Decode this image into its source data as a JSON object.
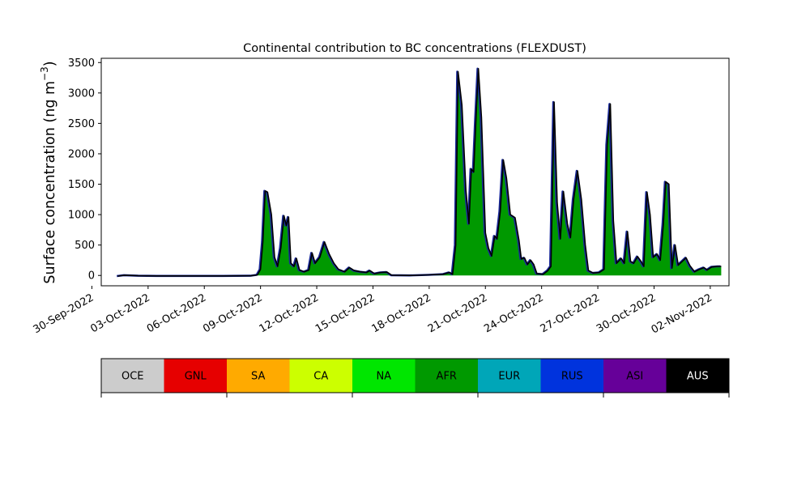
{
  "chart_data": {
    "type": "area",
    "title": "Continental contribution to BC concentrations (FLEXDUST)",
    "ylabel": "Surface concentration (ng m",
    "ylabel_sup": "−3",
    "ylabel_close": ")",
    "xlabel": "",
    "ylim": [
      -170,
      3570
    ],
    "xlim": [
      "2022-09-30T12:00",
      "2022-11-03T00:00"
    ],
    "yticks": [
      0,
      500,
      1000,
      1500,
      2000,
      2500,
      3000,
      3500
    ],
    "xticks": [
      "30-Sep-2022",
      "03-Oct-2022",
      "06-Oct-2022",
      "09-Oct-2022",
      "12-Oct-2022",
      "15-Oct-2022",
      "18-Oct-2022",
      "21-Oct-2022",
      "24-Oct-2022",
      "27-Oct-2022",
      "30-Oct-2022",
      "02-Nov-2022"
    ],
    "grid": false,
    "dominant_series": "AFR",
    "total_series_color": "#000000",
    "total": [
      [
        "2022-10-01T09:00",
        -10
      ],
      [
        "2022-10-01T18:00",
        5
      ],
      [
        "2022-10-02T12:00",
        -5
      ],
      [
        "2022-10-03T12:00",
        -8
      ],
      [
        "2022-10-05T00:00",
        -8
      ],
      [
        "2022-10-07T00:00",
        -8
      ],
      [
        "2022-10-08T12:00",
        -5
      ],
      [
        "2022-10-08T20:00",
        10
      ],
      [
        "2022-10-09T00:00",
        100
      ],
      [
        "2022-10-09T03:00",
        550
      ],
      [
        "2022-10-09T06:00",
        1390
      ],
      [
        "2022-10-09T09:00",
        1370
      ],
      [
        "2022-10-09T14:00",
        1000
      ],
      [
        "2022-10-09T18:00",
        300
      ],
      [
        "2022-10-09T22:00",
        150
      ],
      [
        "2022-10-10T02:00",
        450
      ],
      [
        "2022-10-10T06:00",
        980
      ],
      [
        "2022-10-10T09:00",
        820
      ],
      [
        "2022-10-10T12:00",
        960
      ],
      [
        "2022-10-10T15:00",
        200
      ],
      [
        "2022-10-10T19:00",
        150
      ],
      [
        "2022-10-10T22:00",
        280
      ],
      [
        "2022-10-11T02:00",
        90
      ],
      [
        "2022-10-11T08:00",
        60
      ],
      [
        "2022-10-11T14:00",
        90
      ],
      [
        "2022-10-11T18:00",
        370
      ],
      [
        "2022-10-11T22:00",
        200
      ],
      [
        "2022-10-12T04:00",
        300
      ],
      [
        "2022-10-12T10:00",
        550
      ],
      [
        "2022-10-12T16:00",
        350
      ],
      [
        "2022-10-12T22:00",
        200
      ],
      [
        "2022-10-13T04:00",
        100
      ],
      [
        "2022-10-13T12:00",
        60
      ],
      [
        "2022-10-13T18:00",
        130
      ],
      [
        "2022-10-14T00:00",
        80
      ],
      [
        "2022-10-14T08:00",
        60
      ],
      [
        "2022-10-14T16:00",
        50
      ],
      [
        "2022-10-14T20:00",
        80
      ],
      [
        "2022-10-15T02:00",
        30
      ],
      [
        "2022-10-15T10:00",
        50
      ],
      [
        "2022-10-15T18:00",
        55
      ],
      [
        "2022-10-16T00:00",
        5
      ],
      [
        "2022-10-17T00:00",
        0
      ],
      [
        "2022-10-18T00:00",
        10
      ],
      [
        "2022-10-18T18:00",
        20
      ],
      [
        "2022-10-19T02:00",
        50
      ],
      [
        "2022-10-19T06:00",
        20
      ],
      [
        "2022-10-19T10:00",
        500
      ],
      [
        "2022-10-19T13:00",
        3350
      ],
      [
        "2022-10-19T18:00",
        2800
      ],
      [
        "2022-10-19T23:00",
        1400
      ],
      [
        "2022-10-20T03:00",
        850
      ],
      [
        "2022-10-20T06:00",
        1750
      ],
      [
        "2022-10-20T09:00",
        1700
      ],
      [
        "2022-10-20T12:00",
        2600
      ],
      [
        "2022-10-20T15:00",
        3400
      ],
      [
        "2022-10-20T19:00",
        2600
      ],
      [
        "2022-10-21T00:00",
        700
      ],
      [
        "2022-10-21T04:00",
        450
      ],
      [
        "2022-10-21T08:00",
        320
      ],
      [
        "2022-10-21T12:00",
        650
      ],
      [
        "2022-10-21T15:00",
        600
      ],
      [
        "2022-10-21T19:00",
        1050
      ],
      [
        "2022-10-21T23:00",
        1900
      ],
      [
        "2022-10-22T03:00",
        1600
      ],
      [
        "2022-10-22T08:00",
        1000
      ],
      [
        "2022-10-22T14:00",
        950
      ],
      [
        "2022-10-22T19:00",
        580
      ],
      [
        "2022-10-22T22:00",
        270
      ],
      [
        "2022-10-23T02:00",
        290
      ],
      [
        "2022-10-23T06:00",
        180
      ],
      [
        "2022-10-23T10:00",
        250
      ],
      [
        "2022-10-23T14:00",
        180
      ],
      [
        "2022-10-23T18:00",
        30
      ],
      [
        "2022-10-24T02:00",
        20
      ],
      [
        "2022-10-24T08:00",
        80
      ],
      [
        "2022-10-24T12:00",
        150
      ],
      [
        "2022-10-24T16:00",
        2850
      ],
      [
        "2022-10-24T20:00",
        1200
      ],
      [
        "2022-10-25T00:00",
        600
      ],
      [
        "2022-10-25T04:00",
        1380
      ],
      [
        "2022-10-25T09:00",
        850
      ],
      [
        "2022-10-25T13:00",
        620
      ],
      [
        "2022-10-25T17:00",
        1250
      ],
      [
        "2022-10-25T22:00",
        1720
      ],
      [
        "2022-10-26T03:00",
        1250
      ],
      [
        "2022-10-26T08:00",
        500
      ],
      [
        "2022-10-26T12:00",
        80
      ],
      [
        "2022-10-26T18:00",
        40
      ],
      [
        "2022-10-27T02:00",
        50
      ],
      [
        "2022-10-27T08:00",
        100
      ],
      [
        "2022-10-27T12:00",
        2150
      ],
      [
        "2022-10-27T16:00",
        2820
      ],
      [
        "2022-10-27T20:00",
        900
      ],
      [
        "2022-10-28T00:00",
        200
      ],
      [
        "2022-10-28T06:00",
        280
      ],
      [
        "2022-10-28T10:00",
        200
      ],
      [
        "2022-10-28T14:00",
        720
      ],
      [
        "2022-10-28T18:00",
        230
      ],
      [
        "2022-10-28T22:00",
        200
      ],
      [
        "2022-10-29T03:00",
        310
      ],
      [
        "2022-10-29T08:00",
        220
      ],
      [
        "2022-10-29T11:00",
        150
      ],
      [
        "2022-10-29T15:00",
        1370
      ],
      [
        "2022-10-29T19:00",
        1000
      ],
      [
        "2022-10-29T23:00",
        300
      ],
      [
        "2022-10-30T04:00",
        350
      ],
      [
        "2022-10-30T08:00",
        250
      ],
      [
        "2022-10-30T12:00",
        850
      ],
      [
        "2022-10-30T15:00",
        1540
      ],
      [
        "2022-10-30T19:00",
        1500
      ],
      [
        "2022-10-30T23:00",
        120
      ],
      [
        "2022-10-31T03:00",
        500
      ],
      [
        "2022-10-31T07:00",
        170
      ],
      [
        "2022-10-31T12:00",
        230
      ],
      [
        "2022-10-31T17:00",
        290
      ],
      [
        "2022-10-31T22:00",
        160
      ],
      [
        "2022-11-01T04:00",
        60
      ],
      [
        "2022-11-01T10:00",
        100
      ],
      [
        "2022-11-01T16:00",
        130
      ],
      [
        "2022-11-01T20:00",
        90
      ],
      [
        "2022-11-02T02:00",
        140
      ],
      [
        "2022-11-02T10:00",
        150
      ],
      [
        "2022-11-02T14:00",
        150
      ]
    ]
  },
  "legend": {
    "items": [
      {
        "label": "OCE",
        "color": "#cccccc"
      },
      {
        "label": "GNL",
        "color": "#e60000"
      },
      {
        "label": "SA",
        "color": "#ffaa00"
      },
      {
        "label": "CA",
        "color": "#ccff00"
      },
      {
        "label": "NA",
        "color": "#00e600"
      },
      {
        "label": "AFR",
        "color": "#009900"
      },
      {
        "label": "EUR",
        "color": "#00a6b8"
      },
      {
        "label": "RUS",
        "color": "#0033dd"
      },
      {
        "label": "ASI",
        "color": "#660099"
      },
      {
        "label": "AUS",
        "color": "#000000"
      }
    ]
  }
}
